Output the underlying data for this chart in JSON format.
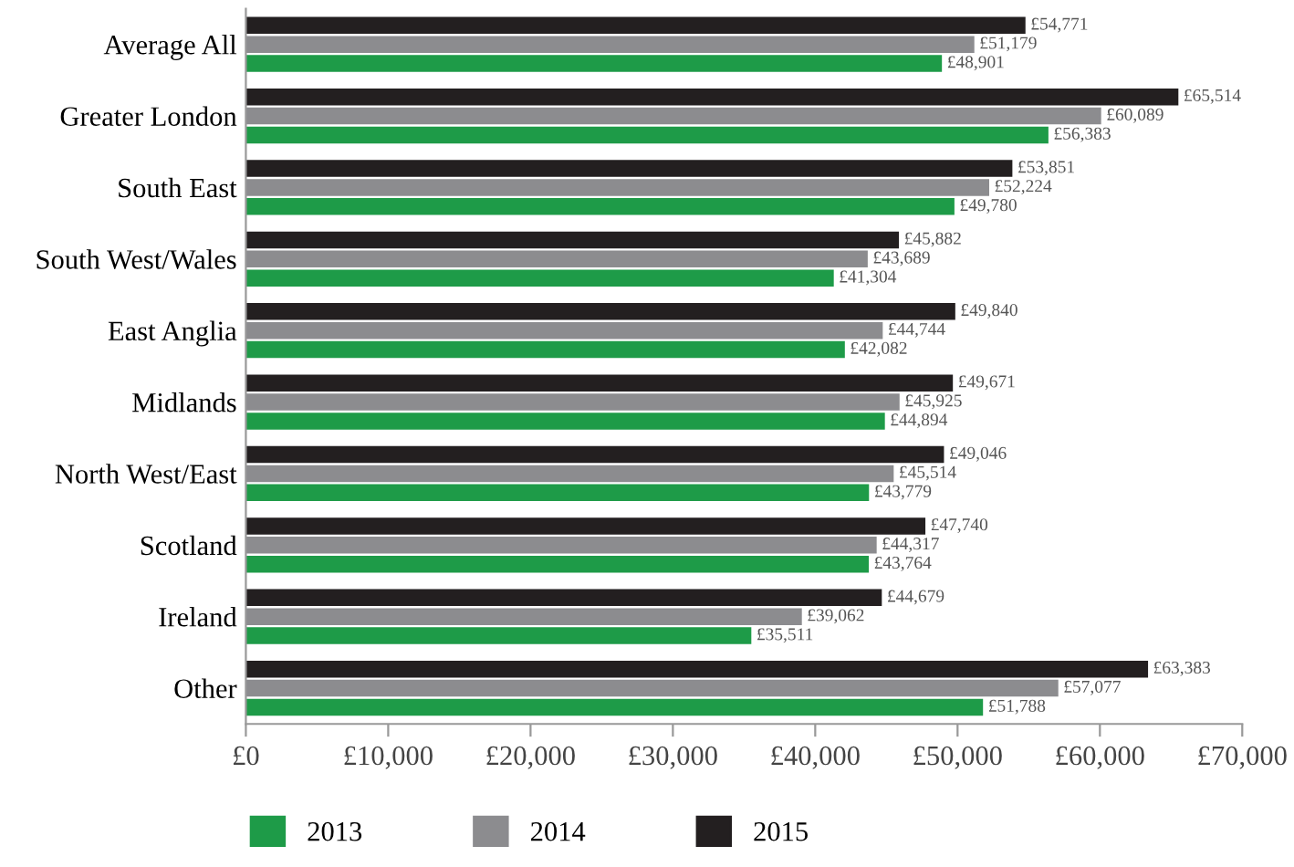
{
  "chart_data": {
    "type": "bar",
    "orientation": "horizontal",
    "categories": [
      "Average All",
      "Greater London",
      "South East",
      "South West/Wales",
      "East Anglia",
      "Midlands",
      "North West/East",
      "Scotland",
      "Ireland",
      "Other"
    ],
    "series": [
      {
        "name": "2013",
        "color": "#1e9b48",
        "values": [
          48901,
          56383,
          49780,
          41304,
          42082,
          44894,
          43779,
          43764,
          35511,
          51788
        ],
        "value_labels": [
          "£48,901",
          "£56,383",
          "£49,780",
          "£41,304",
          "£42,082",
          "£44,894",
          "£43,779",
          "£43,764",
          "£35,511",
          "£51,788"
        ]
      },
      {
        "name": "2014",
        "color": "#8c8c8f",
        "values": [
          51179,
          60089,
          52224,
          43689,
          44744,
          45925,
          45514,
          44317,
          39062,
          57077
        ],
        "value_labels": [
          "£51,179",
          "£60,089",
          "£52,224",
          "£43,689",
          "£44,744",
          "£45,925",
          "£45,514",
          "£44,317",
          "£39,062",
          "£57,077"
        ]
      },
      {
        "name": "2015",
        "color": "#231f20",
        "values": [
          54771,
          65514,
          53851,
          45882,
          49840,
          49671,
          49046,
          47740,
          44679,
          63383
        ],
        "value_labels": [
          "£54,771",
          "£65,514",
          "£53,851",
          "£45,882",
          "£49,840",
          "£49,671",
          "£49,046",
          "£47,740",
          "£44,679",
          "£63,383"
        ]
      }
    ],
    "xlim": [
      0,
      70000
    ],
    "xticks": [
      {
        "value": 0,
        "label": "£0"
      },
      {
        "value": 10000,
        "label": "£10,000"
      },
      {
        "value": 20000,
        "label": "£20,000"
      },
      {
        "value": 30000,
        "label": "£30,000"
      },
      {
        "value": 40000,
        "label": "£40,000"
      },
      {
        "value": 50000,
        "label": "£50,000"
      },
      {
        "value": 60000,
        "label": "£60,000"
      },
      {
        "value": 70000,
        "label": "£70,000"
      }
    ],
    "grid": false,
    "legend": "bottom left"
  }
}
